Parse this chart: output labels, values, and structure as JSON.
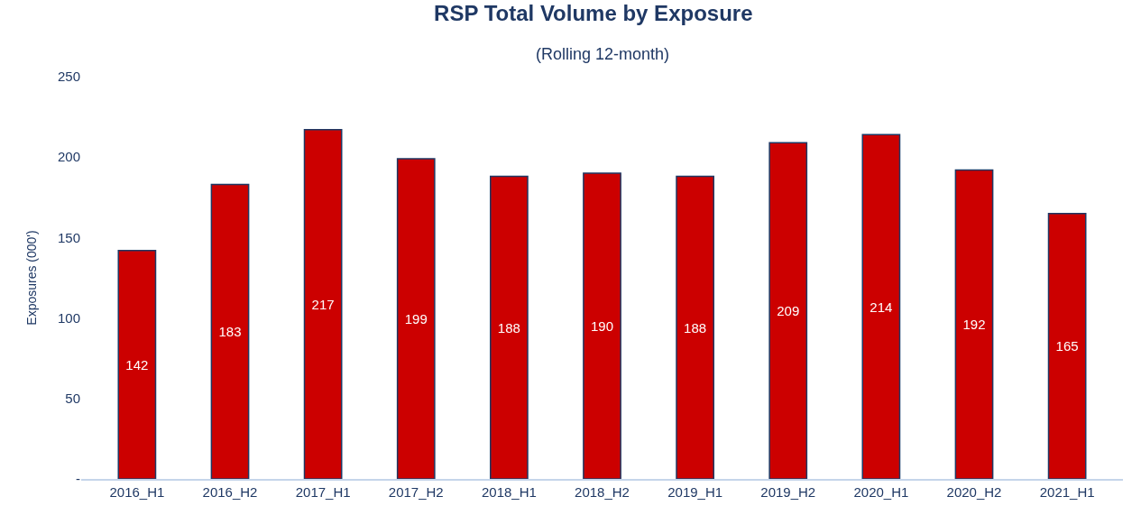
{
  "chart_data": {
    "type": "bar",
    "title": "RSP Total Volume by Exposure",
    "subtitle": "(Rolling 12-month)",
    "ylabel": "Exposures (000')",
    "categories": [
      "2016_H1",
      "2016_H2",
      "2017_H1",
      "2017_H2",
      "2018_H1",
      "2018_H2",
      "2019_H1",
      "2019_H2",
      "2020_H1",
      "2020_H2",
      "2021_H1"
    ],
    "values": [
      142,
      183,
      217,
      199,
      188,
      190,
      188,
      209,
      214,
      192,
      165
    ],
    "color": "#cc0000",
    "data_labels": true,
    "legend": false,
    "ylim": [
      0,
      250
    ],
    "yticks": [
      {
        "value": 0,
        "label": "-"
      },
      50,
      100,
      150,
      200,
      250
    ]
  }
}
